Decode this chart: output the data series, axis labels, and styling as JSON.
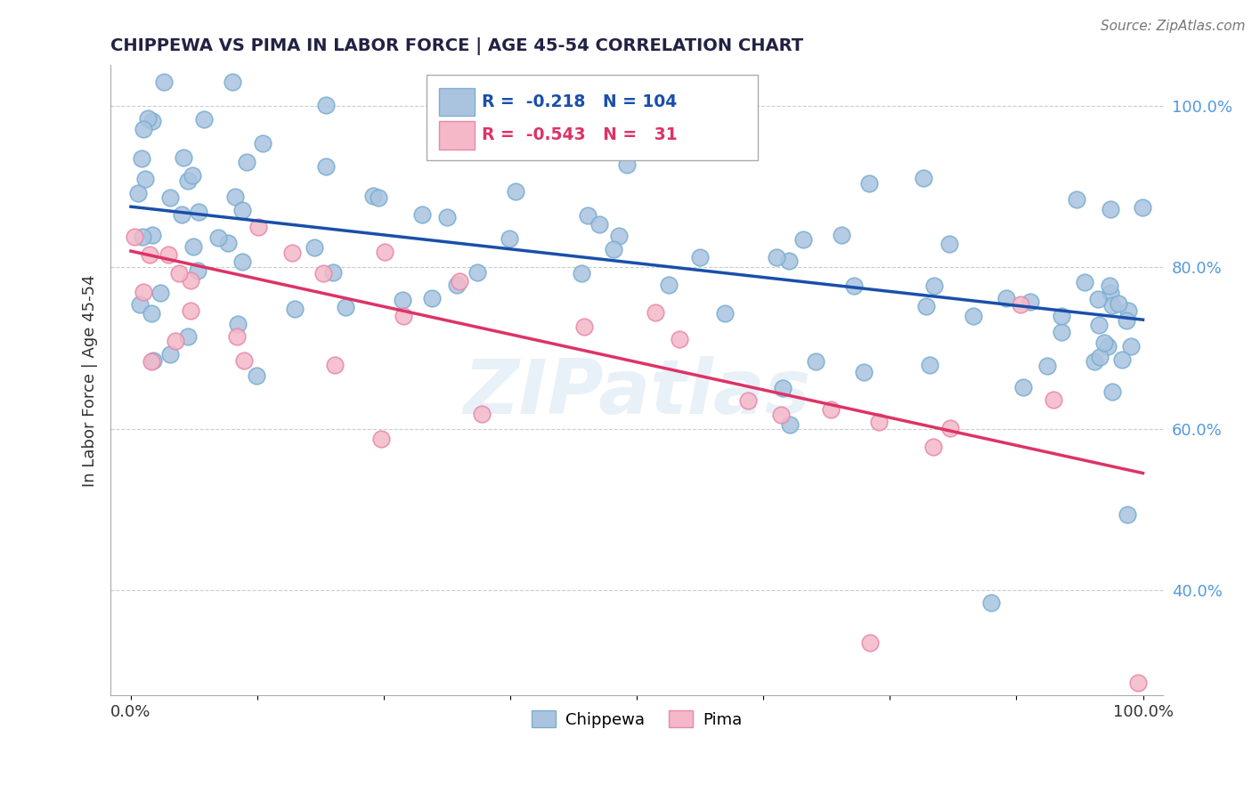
{
  "title": "CHIPPEWA VS PIMA IN LABOR FORCE | AGE 45-54 CORRELATION CHART",
  "source_text": "Source: ZipAtlas.com",
  "ylabel": "In Labor Force | Age 45-54",
  "xlim": [
    -0.02,
    1.02
  ],
  "ylim": [
    0.27,
    1.05
  ],
  "yticks": [
    0.4,
    0.6,
    0.8,
    1.0
  ],
  "yticklabels": [
    "40.0%",
    "60.0%",
    "80.0%",
    "100.0%"
  ],
  "xtick_positions": [
    0.0,
    0.125,
    0.25,
    0.375,
    0.5,
    0.625,
    0.75,
    0.875,
    1.0
  ],
  "grid_color": "#cccccc",
  "background_color": "#ffffff",
  "chippewa_color": "#aac4e0",
  "chippewa_edge_color": "#7aaed0",
  "pima_color": "#f4b8c8",
  "pima_edge_color": "#e888aa",
  "chippewa_line_color": "#1a4faa",
  "pima_line_color": "#dd3366",
  "chippewa_R": -0.218,
  "chippewa_N": 104,
  "pima_R": -0.543,
  "pima_N": 31,
  "yticklabel_color": "#5599dd",
  "watermark_text": "ZIPatlas",
  "chip_line_x0": 0.0,
  "chip_line_y0": 0.875,
  "chip_line_x1": 1.0,
  "chip_line_y1": 0.735,
  "pima_line_x0": 0.0,
  "pima_line_y0": 0.82,
  "pima_line_x1": 1.0,
  "pima_line_y1": 0.545
}
